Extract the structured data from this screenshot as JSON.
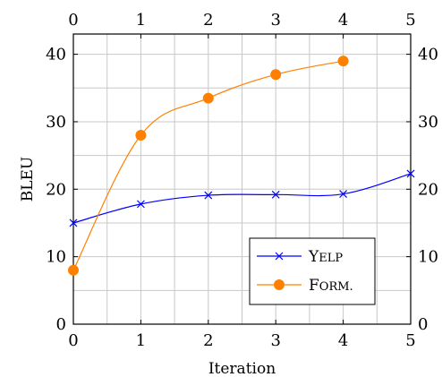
{
  "chart_data": {
    "type": "line",
    "xlabel": "Iteration",
    "ylabel": "BLEU",
    "xlim": [
      0,
      5
    ],
    "ylim": [
      0,
      43
    ],
    "x_ticks": [
      0,
      1,
      2,
      3,
      4,
      5
    ],
    "y_ticks": [
      0,
      10,
      20,
      30,
      40
    ],
    "grid": true,
    "mirror_axes": true,
    "legend_position": "bottom-right",
    "series": [
      {
        "name": "Yelp",
        "color": "#0000ff",
        "marker": "x",
        "smooth": true,
        "x": [
          0,
          1,
          2,
          3,
          4,
          5
        ],
        "y": [
          15.0,
          17.8,
          19.1,
          19.2,
          19.3,
          22.3
        ]
      },
      {
        "name": "Form.",
        "color": "#ff8000",
        "marker": "circle",
        "smooth": true,
        "x": [
          0,
          1,
          2,
          3,
          4
        ],
        "y": [
          8.0,
          28.0,
          33.5,
          37.0,
          39.0
        ]
      }
    ]
  }
}
